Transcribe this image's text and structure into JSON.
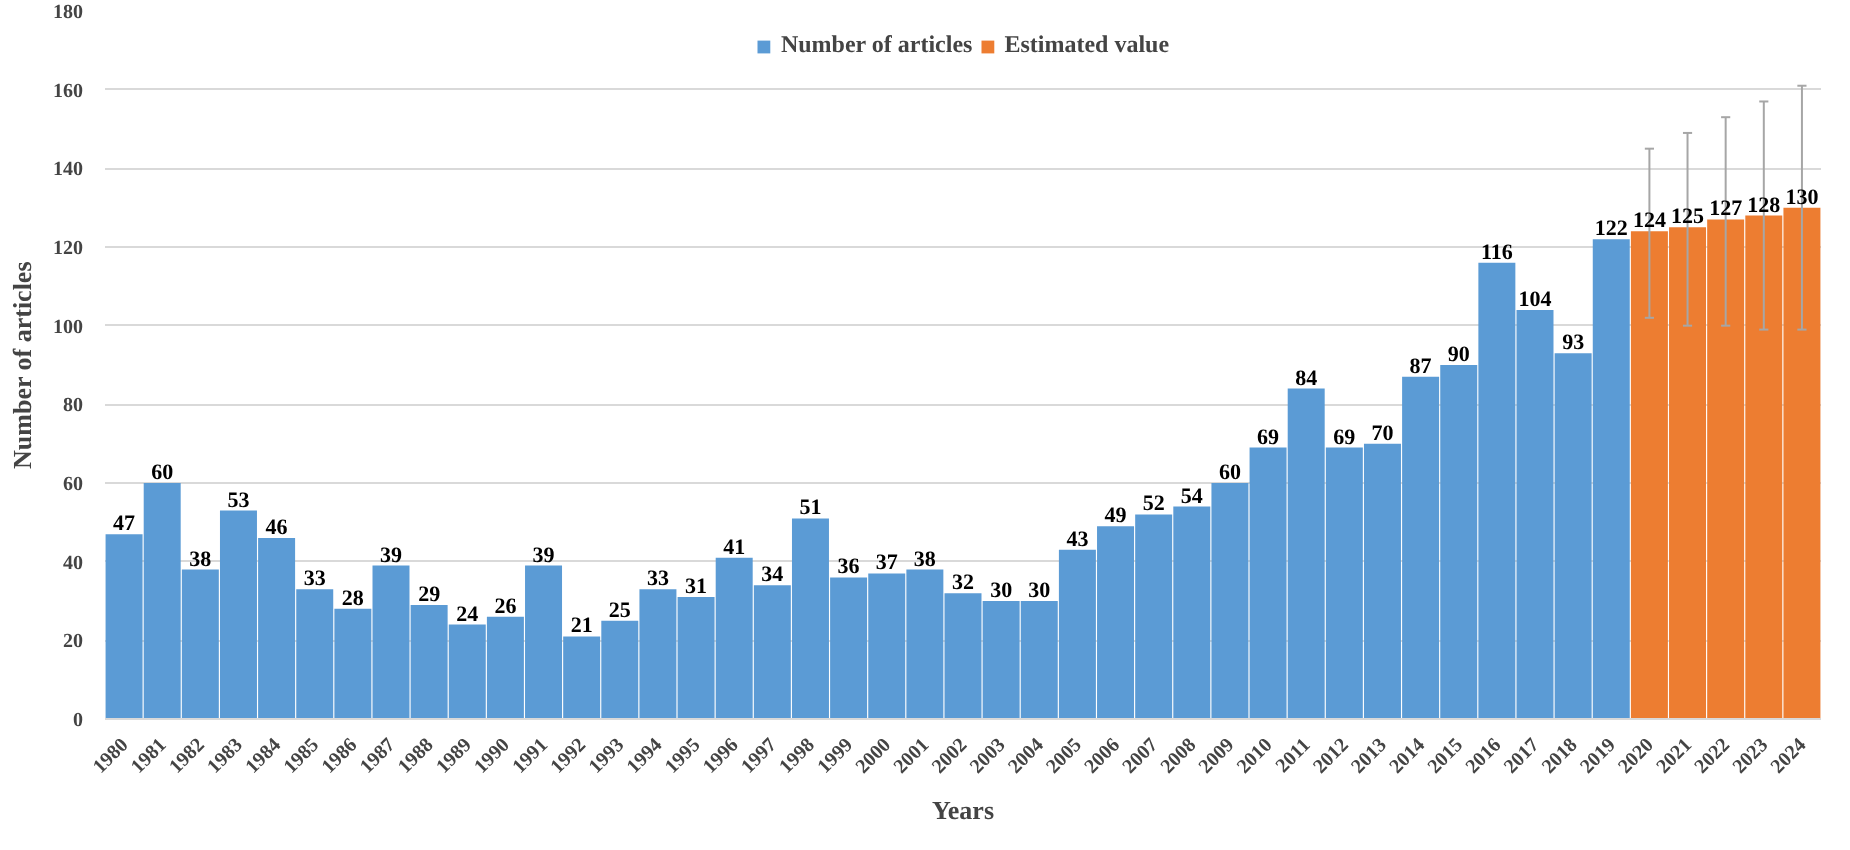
{
  "chart_data": {
    "type": "bar",
    "xlabel": "Years",
    "ylabel": "Number of articles",
    "categories": [
      "1980",
      "1981",
      "1982",
      "1983",
      "1984",
      "1985",
      "1986",
      "1987",
      "1988",
      "1989",
      "1990",
      "1991",
      "1992",
      "1993",
      "1994",
      "1995",
      "1996",
      "1997",
      "1998",
      "1999",
      "2000",
      "2001",
      "2002",
      "2003",
      "2004",
      "2005",
      "2006",
      "2007",
      "2008",
      "2009",
      "2010",
      "2011",
      "2012",
      "2013",
      "2014",
      "2015",
      "2016",
      "2017",
      "2018",
      "2019",
      "2020",
      "2021",
      "2022",
      "2023",
      "2024"
    ],
    "series": [
      {
        "name": "Number of articles",
        "color": "#5b9bd5",
        "values": [
          47,
          60,
          38,
          53,
          46,
          33,
          28,
          39,
          29,
          24,
          26,
          39,
          21,
          25,
          33,
          31,
          41,
          34,
          51,
          36,
          37,
          38,
          32,
          30,
          30,
          43,
          49,
          52,
          54,
          60,
          69,
          84,
          69,
          70,
          87,
          90,
          116,
          104,
          93,
          122,
          null,
          null,
          null,
          null,
          null
        ]
      },
      {
        "name": "Estimated value",
        "color": "#ed7d31",
        "values": [
          null,
          null,
          null,
          null,
          null,
          null,
          null,
          null,
          null,
          null,
          null,
          null,
          null,
          null,
          null,
          null,
          null,
          null,
          null,
          null,
          null,
          null,
          null,
          null,
          null,
          null,
          null,
          null,
          null,
          null,
          null,
          null,
          null,
          null,
          null,
          null,
          null,
          null,
          null,
          null,
          124,
          125,
          127,
          128,
          130
        ],
        "errors": [
          null,
          null,
          null,
          null,
          null,
          null,
          null,
          null,
          null,
          null,
          null,
          null,
          null,
          null,
          null,
          null,
          null,
          null,
          null,
          null,
          null,
          null,
          null,
          null,
          null,
          null,
          null,
          null,
          null,
          null,
          null,
          null,
          null,
          null,
          null,
          null,
          null,
          null,
          null,
          null,
          [
            102,
            145
          ],
          [
            100,
            149
          ],
          [
            100,
            153
          ],
          [
            99,
            157
          ],
          [
            99,
            161
          ]
        ]
      }
    ],
    "ylim": [
      0,
      180
    ],
    "yticks": [
      0,
      20,
      40,
      60,
      80,
      100,
      120,
      140,
      160,
      180
    ],
    "grid": "y",
    "legend": "top",
    "data_labels": true
  }
}
